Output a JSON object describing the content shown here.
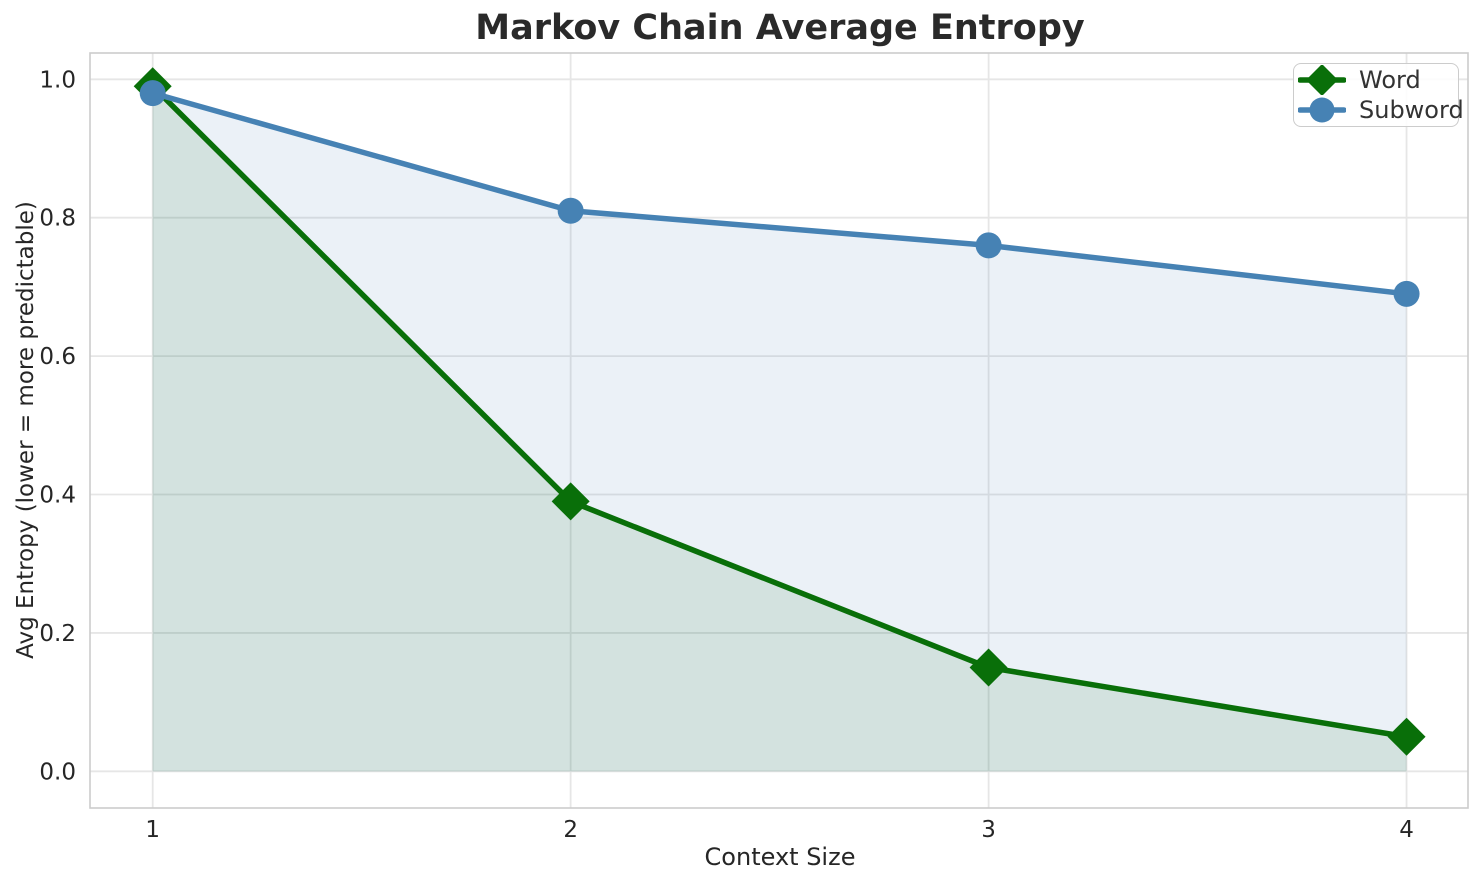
{
  "chart_data": {
    "type": "line",
    "title": "Markov Chain Average Entropy",
    "xlabel": "Context Size",
    "ylabel": "Avg Entropy (lower = more predictable)",
    "x": [
      1,
      2,
      3,
      4
    ],
    "series": [
      {
        "name": "Word",
        "values": [
          0.99,
          0.39,
          0.15,
          0.05
        ],
        "color": "#096f09",
        "marker": "diamond",
        "fill_to_zero": true,
        "fill_opacity": 0.11
      },
      {
        "name": "Subword",
        "values": [
          0.98,
          0.81,
          0.76,
          0.69
        ],
        "color": "#4682b4",
        "marker": "circle",
        "fill_to_zero": true,
        "fill_opacity": 0.11
      }
    ],
    "xticks": [
      1,
      2,
      3,
      4
    ],
    "xtick_labels": [
      "1",
      "2",
      "3",
      "4"
    ],
    "yticks": [
      0.0,
      0.2,
      0.4,
      0.6,
      0.8,
      1.0
    ],
    "ytick_labels": [
      "0.0",
      "0.2",
      "0.4",
      "0.6",
      "0.8",
      "1.0"
    ],
    "xlim": [
      0.85,
      4.147
    ],
    "ylim": [
      -0.053,
      1.038
    ],
    "grid": true,
    "grid_color": "#e6e6e6",
    "spine_color": "#cccccc",
    "tick_label_color": "#262626",
    "legend_position": "upper right",
    "legend_labels": [
      "Word",
      "Subword"
    ]
  }
}
